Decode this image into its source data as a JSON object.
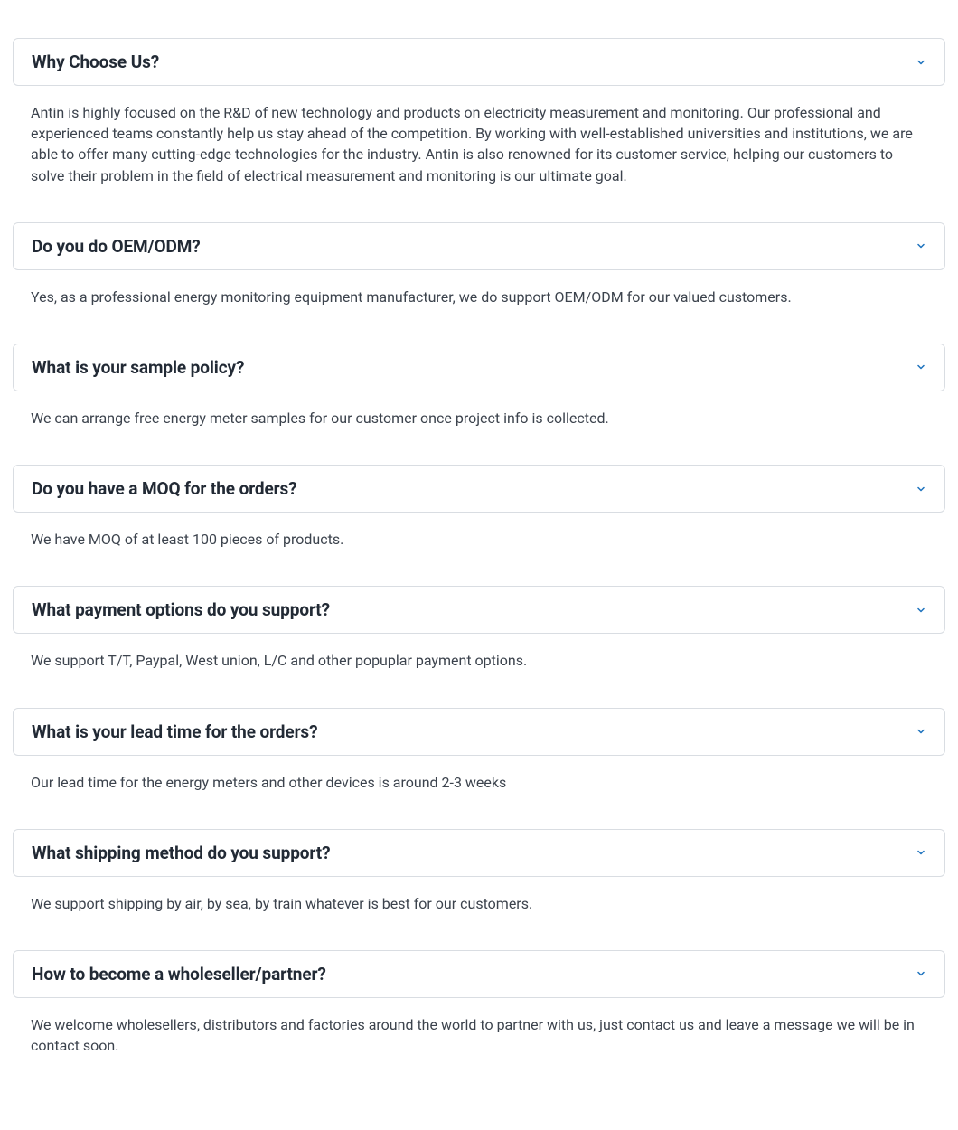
{
  "accent_color": "#1e73be",
  "text_color": "#3c434d",
  "heading_color": "#222a35",
  "border_color": "#d9dde2",
  "background_color": "#ffffff",
  "faq": [
    {
      "question": "Why Choose Us?",
      "answer": "Antin is highly focused on the R&D of new technology and products on electricity measurement and monitoring. Our professional and experienced teams constantly help us stay ahead of the competition. By working with well-established universities and institutions, we are able to offer many cutting-edge technologies for the industry. Antin is also renowned for its customer service, helping our customers to solve their problem in the field of electrical measurement and monitoring is our ultimate goal."
    },
    {
      "question": "Do you do OEM/ODM?",
      "answer": "Yes, as a professional energy monitoring equipment manufacturer, we do support OEM/ODM for our valued customers."
    },
    {
      "question": "What is your sample policy?",
      "answer": "We can arrange free energy meter samples for our customer once project info is collected."
    },
    {
      "question": "Do you have a MOQ for the orders?",
      "answer": "We have MOQ of at least 100 pieces of products."
    },
    {
      "question": "What payment options do you support?",
      "answer": "We support T/T, Paypal, West union, L/C and other popuplar payment options."
    },
    {
      "question": "What is your lead time for the orders?",
      "answer": "Our lead time for the energy meters and other devices is around 2-3 weeks"
    },
    {
      "question": "What shipping method do you support?",
      "answer": "We support shipping by air, by sea, by train whatever is best for our customers."
    },
    {
      "question": "How to become a wholeseller/partner?",
      "answer": "We welcome wholesellers, distributors and factories around the world to partner with us, just contact us and leave a message we will be in contact soon."
    }
  ]
}
